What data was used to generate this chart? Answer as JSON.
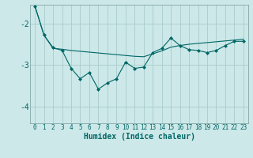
{
  "xlabel": "Humidex (Indice chaleur)",
  "bg_color": "#cce8e8",
  "grid_color": "#aacccc",
  "line_color": "#006666",
  "xlim": [
    -0.5,
    23.5
  ],
  "ylim": [
    -4.4,
    -1.55
  ],
  "yticks": [
    -4,
    -3,
    -2
  ],
  "xticks": [
    0,
    1,
    2,
    3,
    4,
    5,
    6,
    7,
    8,
    9,
    10,
    11,
    12,
    13,
    14,
    15,
    16,
    17,
    18,
    19,
    20,
    21,
    22,
    23
  ],
  "line1_x": [
    0,
    1,
    2,
    3,
    4,
    5,
    6,
    7,
    8,
    9,
    10,
    11,
    12,
    13,
    14,
    15,
    16,
    17,
    18,
    19,
    20,
    21,
    22,
    23
  ],
  "line1_y": [
    -1.58,
    -2.28,
    -2.58,
    -2.65,
    -3.08,
    -3.33,
    -3.18,
    -3.58,
    -3.43,
    -3.33,
    -2.93,
    -3.08,
    -3.05,
    -2.7,
    -2.6,
    -2.35,
    -2.53,
    -2.63,
    -2.65,
    -2.7,
    -2.65,
    -2.53,
    -2.43,
    -2.43
  ],
  "line2_x": [
    0,
    1,
    2,
    3,
    4,
    5,
    6,
    7,
    8,
    9,
    10,
    11,
    12,
    13,
    14,
    15,
    16,
    17,
    18,
    19,
    20,
    21,
    22,
    23
  ],
  "line2_y": [
    -1.58,
    -2.28,
    -2.6,
    -2.62,
    -2.65,
    -2.67,
    -2.69,
    -2.71,
    -2.73,
    -2.75,
    -2.77,
    -2.79,
    -2.8,
    -2.73,
    -2.66,
    -2.57,
    -2.53,
    -2.5,
    -2.48,
    -2.46,
    -2.44,
    -2.42,
    -2.4,
    -2.38
  ]
}
